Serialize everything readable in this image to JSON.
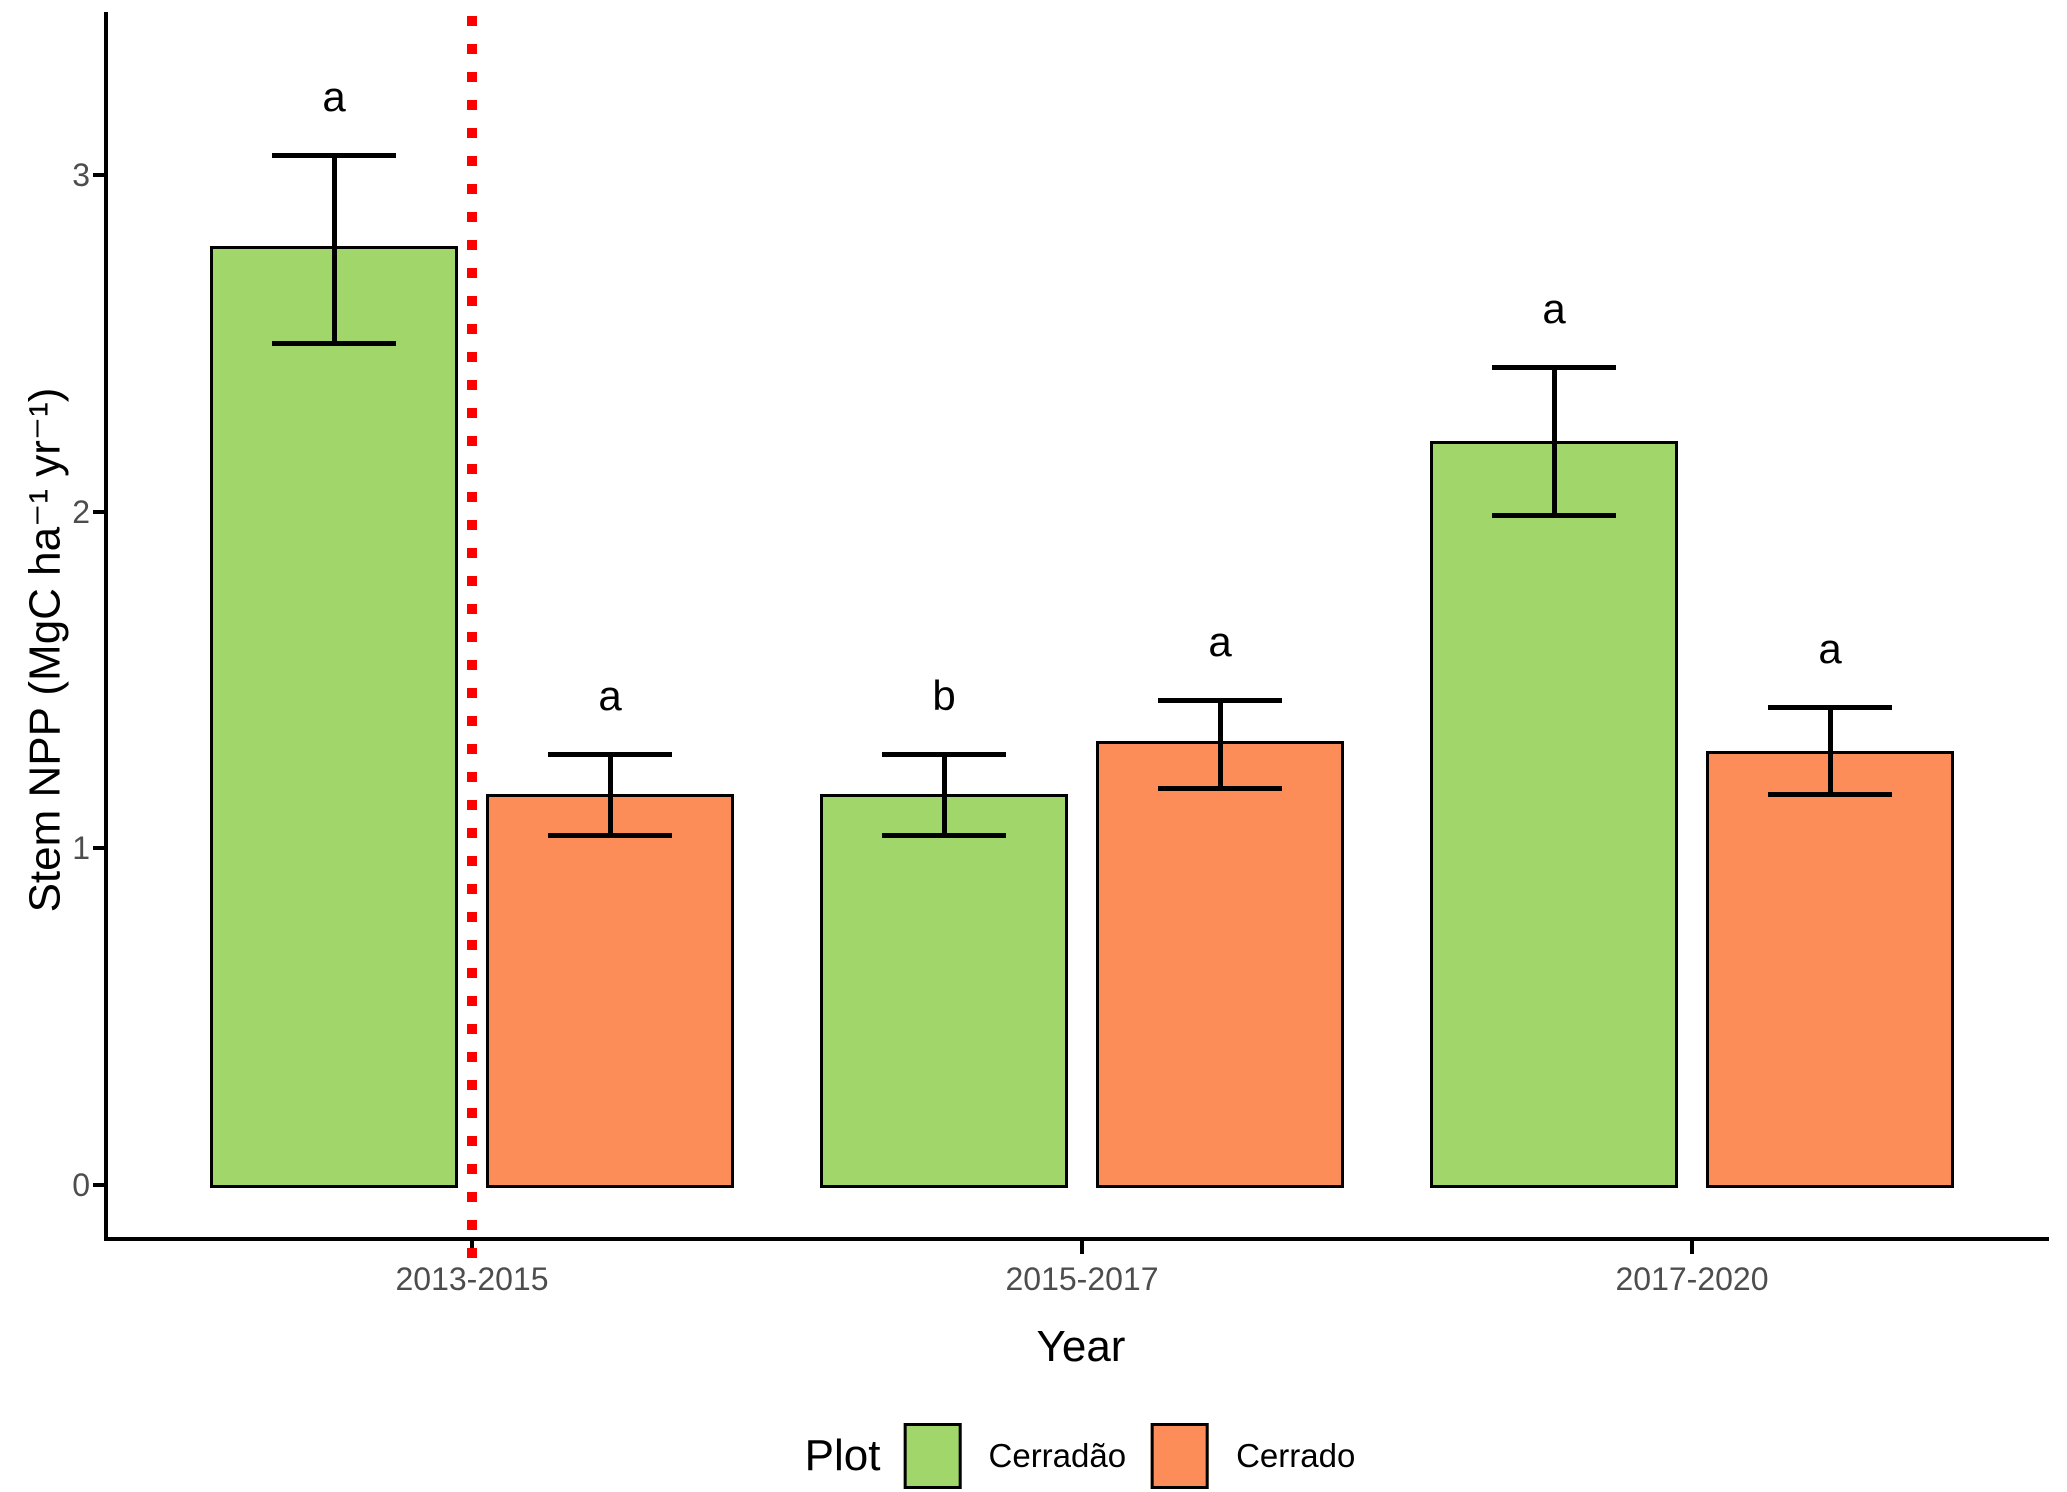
{
  "chart_data": {
    "type": "bar",
    "title": "",
    "xlabel": "Year",
    "ylabel": "Stem NPP (MgC ha⁻¹ yr⁻¹)",
    "categories": [
      "2013-2015",
      "2015-2017",
      "2017-2020"
    ],
    "y_ticks": [
      0,
      1,
      2,
      3
    ],
    "y_tick_labels": [
      "0",
      "1",
      "2",
      "3"
    ],
    "ylim": [
      0,
      3.5
    ],
    "grid": false,
    "bar_outline_color": "#000000",
    "error_bar_color": "#000000",
    "series": [
      {
        "name": "Cerradão",
        "color": "#A1D76A",
        "values": [
          2.79,
          1.16,
          2.21
        ],
        "err_low": [
          2.5,
          1.04,
          1.99
        ],
        "err_high": [
          3.06,
          1.28,
          2.43
        ],
        "sig_letters": [
          "a",
          "b",
          "a"
        ]
      },
      {
        "name": "Cerrado",
        "color": "#FC8D59",
        "values": [
          1.16,
          1.32,
          1.29
        ],
        "err_low": [
          1.04,
          1.18,
          1.16
        ],
        "err_high": [
          1.28,
          1.44,
          1.42
        ],
        "sig_letters": [
          "a",
          "a",
          "a"
        ]
      }
    ],
    "vline": {
      "x_category": "2013-2015",
      "style": "dotted",
      "color": "#FF0000"
    },
    "legend_position": "bottom"
  },
  "legend": {
    "title": "Plot",
    "items": [
      {
        "label": "Cerradão",
        "color": "#A1D76A"
      },
      {
        "label": "Cerrado",
        "color": "#FC8D59"
      }
    ]
  }
}
